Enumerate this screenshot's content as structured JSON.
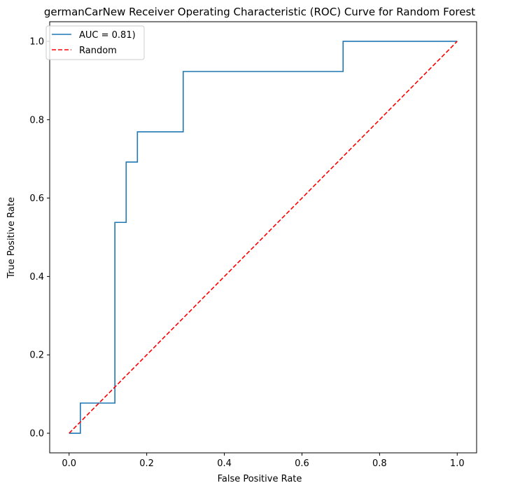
{
  "chart_data": {
    "type": "line",
    "title": "germanCarNew Receiver Operating Characteristic (ROC) Curve for Random Forest",
    "xlabel": "False Positive Rate",
    "ylabel": "True Positive Rate",
    "xlim": [
      -0.05,
      1.05
    ],
    "ylim": [
      -0.05,
      1.05
    ],
    "xticks": [
      0.0,
      0.2,
      0.4,
      0.6,
      0.8,
      1.0
    ],
    "yticks": [
      0.0,
      0.2,
      0.4,
      0.6,
      0.8,
      1.0
    ],
    "xtick_labels": [
      "0.0",
      "0.2",
      "0.4",
      "0.6",
      "0.8",
      "1.0"
    ],
    "ytick_labels": [
      "0.0",
      "0.2",
      "0.4",
      "0.6",
      "0.8",
      "1.0"
    ],
    "grid": false,
    "legend_position": "upper-left",
    "series": [
      {
        "name": "AUC = 0.81)",
        "color": "#1f77b4",
        "style": "solid",
        "x": [
          0.0,
          0.029,
          0.029,
          0.118,
          0.118,
          0.147,
          0.147,
          0.176,
          0.176,
          0.294,
          0.294,
          0.706,
          0.706,
          1.0
        ],
        "y": [
          0.0,
          0.0,
          0.077,
          0.077,
          0.538,
          0.538,
          0.692,
          0.692,
          0.769,
          0.769,
          0.923,
          0.923,
          1.0,
          1.0
        ]
      },
      {
        "name": "Random",
        "color": "#ff0000",
        "style": "dashed",
        "x": [
          0.0,
          1.0
        ],
        "y": [
          0.0,
          1.0
        ]
      }
    ]
  }
}
